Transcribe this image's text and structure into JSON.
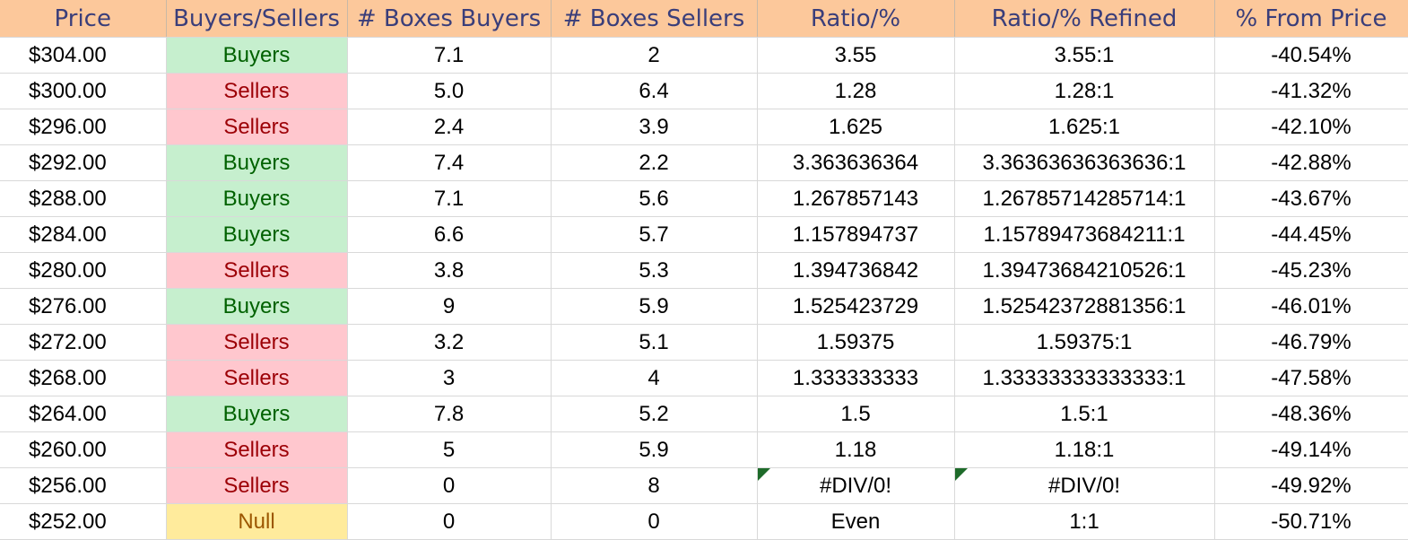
{
  "headers": [
    "Price",
    "Buyers/Sellers",
    "# Boxes Buyers",
    "# Boxes Sellers",
    "Ratio/%",
    "Ratio/% Refined",
    "% From Price"
  ],
  "rows": [
    {
      "price": "$304.00",
      "side": "Buyers",
      "boxes_buyers": "7.1",
      "boxes_sellers": "2",
      "ratio": "3.55",
      "ratio_refined": "3.55:1",
      "from_price": "-40.54%"
    },
    {
      "price": "$300.00",
      "side": "Sellers",
      "boxes_buyers": "5.0",
      "boxes_sellers": "6.4",
      "ratio": "1.28",
      "ratio_refined": "1.28:1",
      "from_price": "-41.32%"
    },
    {
      "price": "$296.00",
      "side": "Sellers",
      "boxes_buyers": "2.4",
      "boxes_sellers": "3.9",
      "ratio": "1.625",
      "ratio_refined": "1.625:1",
      "from_price": "-42.10%"
    },
    {
      "price": "$292.00",
      "side": "Buyers",
      "boxes_buyers": "7.4",
      "boxes_sellers": "2.2",
      "ratio": "3.363636364",
      "ratio_refined": "3.36363636363636:1",
      "from_price": "-42.88%"
    },
    {
      "price": "$288.00",
      "side": "Buyers",
      "boxes_buyers": "7.1",
      "boxes_sellers": "5.6",
      "ratio": "1.267857143",
      "ratio_refined": "1.26785714285714:1",
      "from_price": "-43.67%"
    },
    {
      "price": "$284.00",
      "side": "Buyers",
      "boxes_buyers": "6.6",
      "boxes_sellers": "5.7",
      "ratio": "1.157894737",
      "ratio_refined": "1.15789473684211:1",
      "from_price": "-44.45%"
    },
    {
      "price": "$280.00",
      "side": "Sellers",
      "boxes_buyers": "3.8",
      "boxes_sellers": "5.3",
      "ratio": "1.394736842",
      "ratio_refined": "1.39473684210526:1",
      "from_price": "-45.23%"
    },
    {
      "price": "$276.00",
      "side": "Buyers",
      "boxes_buyers": "9",
      "boxes_sellers": "5.9",
      "ratio": "1.525423729",
      "ratio_refined": "1.52542372881356:1",
      "from_price": "-46.01%"
    },
    {
      "price": "$272.00",
      "side": "Sellers",
      "boxes_buyers": "3.2",
      "boxes_sellers": "5.1",
      "ratio": "1.59375",
      "ratio_refined": "1.59375:1",
      "from_price": "-46.79%"
    },
    {
      "price": "$268.00",
      "side": "Sellers",
      "boxes_buyers": "3",
      "boxes_sellers": "4",
      "ratio": "1.333333333",
      "ratio_refined": "1.33333333333333:1",
      "from_price": "-47.58%"
    },
    {
      "price": "$264.00",
      "side": "Buyers",
      "boxes_buyers": "7.8",
      "boxes_sellers": "5.2",
      "ratio": "1.5",
      "ratio_refined": "1.5:1",
      "from_price": "-48.36%"
    },
    {
      "price": "$260.00",
      "side": "Sellers",
      "boxes_buyers": "5",
      "boxes_sellers": "5.9",
      "ratio": "1.18",
      "ratio_refined": "1.18:1",
      "from_price": "-49.14%"
    },
    {
      "price": "$256.00",
      "side": "Sellers",
      "boxes_buyers": "0",
      "boxes_sellers": "8",
      "ratio": "#DIV/0!",
      "ratio_refined": "#DIV/0!",
      "from_price": "-49.92%",
      "error_flag": true
    },
    {
      "price": "$252.00",
      "side": "Null",
      "boxes_buyers": "0",
      "boxes_sellers": "0",
      "ratio": "Even",
      "ratio_refined": "1:1",
      "from_price": "-50.71%"
    }
  ],
  "colors": {
    "header_bg": "#fcc89b",
    "header_text": "#3a3e7a",
    "buyers_bg": "#c6efce",
    "buyers_text": "#006100",
    "sellers_bg": "#ffc7ce",
    "sellers_text": "#9c0006",
    "null_bg": "#ffeb9c",
    "null_text": "#9c5700",
    "error_flag": "#1e6b2a"
  }
}
